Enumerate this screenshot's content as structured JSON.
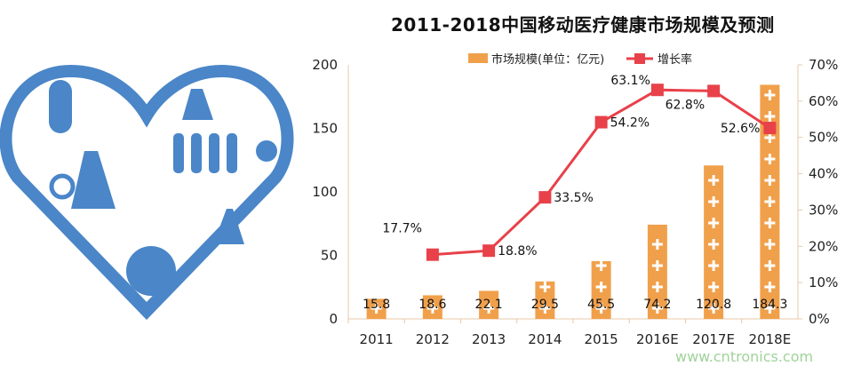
{
  "watermark": "www.cntronics.com",
  "chart_data": {
    "type": "bar+line",
    "title": "2011-2018中国移动医疗健康市场规模及预测",
    "categories": [
      "2011",
      "2012",
      "2013",
      "2014",
      "2015",
      "2016E",
      "2017E",
      "2018E"
    ],
    "series": [
      {
        "name": "市场规模(单位：亿元)",
        "type": "bar",
        "axis": "left",
        "color": "#f0a04b",
        "values": [
          15.8,
          18.6,
          22.1,
          29.5,
          45.5,
          74.2,
          120.8,
          184.3
        ],
        "labels": [
          "15.8",
          "18.6",
          "22.1",
          "29.5",
          "45.5",
          "74.2",
          "120.8",
          "184.3"
        ]
      },
      {
        "name": "增长率",
        "type": "line",
        "axis": "right",
        "color": "#e8414a",
        "values": [
          null,
          17.7,
          18.8,
          33.5,
          54.2,
          63.1,
          62.8,
          52.6
        ],
        "labels": [
          "",
          "17.7%",
          "18.8%",
          "33.5%",
          "54.2%",
          "63.1%",
          "62.8%",
          "52.6%"
        ]
      }
    ],
    "y_left": {
      "range": [
        0,
        200
      ],
      "ticks": [
        "0",
        "50",
        "100",
        "150",
        "200"
      ]
    },
    "y_right": {
      "range": [
        0,
        70
      ],
      "ticks": [
        "0%",
        "10%",
        "20%",
        "30%",
        "40%",
        "50%",
        "60%",
        "70%"
      ]
    },
    "legend": "top",
    "grid": false
  }
}
